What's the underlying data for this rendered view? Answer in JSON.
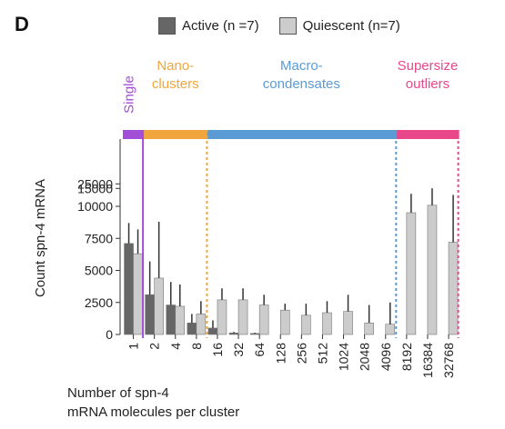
{
  "panel_label": "D",
  "legend": [
    {
      "label": "Active (n =7)",
      "color": "#666666"
    },
    {
      "label": "Quiescent (n=7)",
      "color": "#cccccc"
    }
  ],
  "chart_data": {
    "type": "bar",
    "categories": [
      "1",
      "2",
      "4",
      "8",
      "16",
      "32",
      "64",
      "128",
      "256",
      "512",
      "1024",
      "2048",
      "4096",
      "8192",
      "16384",
      "32768"
    ],
    "series": [
      {
        "name": "Active (n =7)",
        "values": [
          7100,
          3100,
          2300,
          900,
          500,
          120,
          80,
          0,
          0,
          0,
          0,
          0,
          0,
          0,
          0,
          0
        ],
        "errors": [
          1600,
          2600,
          1800,
          700,
          600,
          80,
          60,
          0,
          0,
          0,
          0,
          0,
          0,
          0,
          0,
          0
        ]
      },
      {
        "name": "Quiescent (n=7)",
        "values": [
          6300,
          4400,
          2200,
          1600,
          2700,
          2700,
          2300,
          1900,
          1500,
          1700,
          1800,
          900,
          800,
          9500,
          10300,
          7200
        ],
        "errors": [
          1900,
          4400,
          1700,
          1000,
          900,
          900,
          800,
          500,
          900,
          900,
          1300,
          1400,
          1700,
          4000,
          5000,
          6000
        ]
      }
    ],
    "xlabel": [
      "Number of spn-4",
      "mRNA molecules per cluster"
    ],
    "ylabel": "Count spn-4 mRNA",
    "yticks": [
      "0",
      "2500",
      "5000",
      "7500",
      "10000",
      "15000",
      "25000"
    ],
    "regions": [
      {
        "label": [
          "Single"
        ],
        "color": "#a24ed6",
        "categories": [
          "1"
        ]
      },
      {
        "label": [
          "Nano-",
          "clusters"
        ],
        "color": "#f0a63c",
        "categories": [
          "2",
          "4",
          "8"
        ]
      },
      {
        "label": [
          "Macro-",
          "condensates"
        ],
        "color": "#5b9bd5",
        "categories": [
          "16",
          "32",
          "64",
          "128",
          "256",
          "512",
          "1024",
          "2048",
          "4096"
        ]
      },
      {
        "label": [
          "Supersize",
          "outliers"
        ],
        "color": "#e8488a",
        "categories": [
          "8192",
          "16384",
          "32768"
        ]
      }
    ],
    "grid": false
  }
}
